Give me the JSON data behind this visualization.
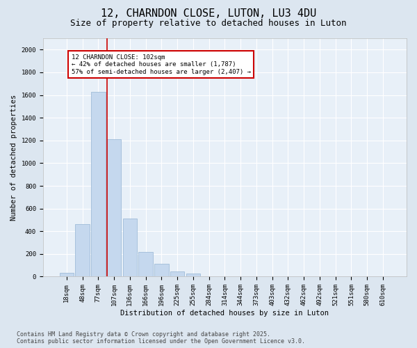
{
  "title": "12, CHARNDON CLOSE, LUTON, LU3 4DU",
  "subtitle": "Size of property relative to detached houses in Luton",
  "xlabel": "Distribution of detached houses by size in Luton",
  "ylabel": "Number of detached properties",
  "categories": [
    "18sqm",
    "48sqm",
    "77sqm",
    "107sqm",
    "136sqm",
    "166sqm",
    "196sqm",
    "225sqm",
    "255sqm",
    "284sqm",
    "314sqm",
    "344sqm",
    "373sqm",
    "403sqm",
    "432sqm",
    "462sqm",
    "492sqm",
    "521sqm",
    "551sqm",
    "580sqm",
    "610sqm"
  ],
  "values": [
    35,
    460,
    1625,
    1210,
    510,
    220,
    115,
    45,
    25,
    0,
    0,
    0,
    0,
    0,
    0,
    0,
    0,
    0,
    0,
    0,
    0
  ],
  "bar_color": "#c5d8ee",
  "bar_edge_color": "#a0bcd8",
  "vline_color": "#cc0000",
  "annotation_text": "12 CHARNDON CLOSE: 102sqm\n← 42% of detached houses are smaller (1,787)\n57% of semi-detached houses are larger (2,407) →",
  "annotation_box_color": "#ffffff",
  "annotation_box_edge_color": "#cc0000",
  "ylim": [
    0,
    2100
  ],
  "yticks": [
    0,
    200,
    400,
    600,
    800,
    1000,
    1200,
    1400,
    1600,
    1800,
    2000
  ],
  "bg_color": "#dce6f0",
  "plot_bg_color": "#e8f0f8",
  "footer_line1": "Contains HM Land Registry data © Crown copyright and database right 2025.",
  "footer_line2": "Contains public sector information licensed under the Open Government Licence v3.0.",
  "title_fontsize": 11,
  "subtitle_fontsize": 9,
  "axis_label_fontsize": 7.5,
  "tick_fontsize": 6.5,
  "annotation_fontsize": 6.5,
  "footer_fontsize": 6
}
